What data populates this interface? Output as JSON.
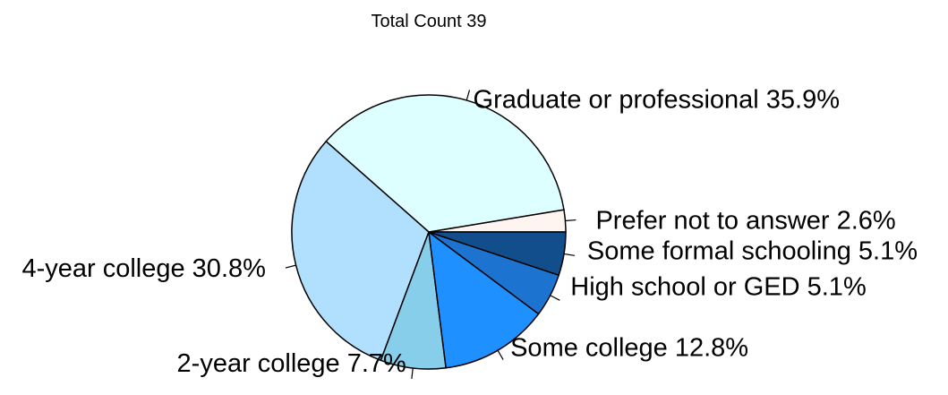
{
  "chart_data": {
    "type": "pie",
    "title": "Total Count  39",
    "slices": [
      {
        "label": "Prefer not to answer",
        "percent_text": "2.6%",
        "value": 2.6,
        "color": "#fff5f0"
      },
      {
        "label": "Graduate or professional",
        "percent_text": "35.9%",
        "value": 35.9,
        "color": "#deffff"
      },
      {
        "label": "4-year college",
        "percent_text": "30.8%",
        "value": 30.8,
        "color": "#b0e0fd"
      },
      {
        "label": "2-year college",
        "percent_text": "7.7%",
        "value": 7.7,
        "color": "#87ceeb"
      },
      {
        "label": "Some college",
        "percent_text": "12.8%",
        "value": 12.8,
        "color": "#1e90ff"
      },
      {
        "label": "High school or GED",
        "percent_text": "5.1%",
        "value": 5.1,
        "color": "#1c74d0"
      },
      {
        "label": "Some formal schooling",
        "percent_text": "5.1%",
        "value": 5.1,
        "color": "#124e8c"
      }
    ]
  }
}
